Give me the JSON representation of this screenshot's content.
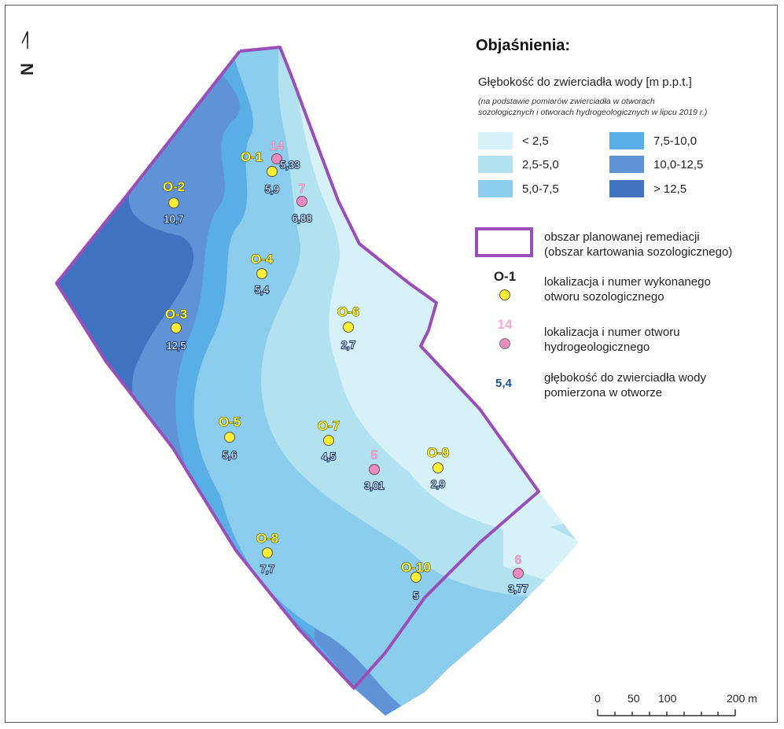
{
  "north_arrow": {
    "letter": "N"
  },
  "legend": {
    "title": "Objaśnienia:",
    "depth_title": "Głębokość do zwierciadła wody [m p.p.t.]",
    "depth_note_line1": "(na podstawie pomiarów zwierciadła w otworach",
    "depth_note_line2": "sozologicznych i otworach hydrogeologicznych w lipcu 2019 r.)",
    "classes": [
      {
        "label": "< 2,5",
        "color": "#d6f1f7"
      },
      {
        "label": "2,5-5,0",
        "color": "#b2e1f0"
      },
      {
        "label": "5,0-7,5",
        "color": "#8ccdee"
      },
      {
        "label": "7,5-10,0",
        "color": "#5aaee6"
      },
      {
        "label": "10,0-12,5",
        "color": "#5f93d6"
      },
      {
        "label": "> 12,5",
        "color": "#3f72c1"
      }
    ],
    "boundary_line1": "obszar planowanej remediacji",
    "boundary_line2": "(obszar kartowania sozologicznego)",
    "boundary_color": "#9a4fb8",
    "soz_symbol_code": "O-1",
    "soz_line1": "lokalizacja i numer wykonanego",
    "soz_line2": "otworu sozologicznego",
    "hydro_symbol_code": "14",
    "hydro_line1": "lokalizacja i numer otworu",
    "hydro_line2": "hydrogeologicznego",
    "depth_symbol_value": "5,4",
    "depth_line1": "głębokość do zwierciadła wody",
    "depth_line2": "pomierzona w otworze",
    "soz_color": "#ffee33",
    "hydro_color": "#e88cc0",
    "hydro_label_color": "#f6a9d2",
    "depth_value_color": "#1f4d9e"
  },
  "boreholes": [
    {
      "id": "O-1",
      "depth": "5,9",
      "type": "sozologiczny"
    },
    {
      "id": "O-2",
      "depth": "10,7",
      "type": "sozologiczny"
    },
    {
      "id": "O-3",
      "depth": "12,5",
      "type": "sozologiczny"
    },
    {
      "id": "O-4",
      "depth": "5,4",
      "type": "sozologiczny"
    },
    {
      "id": "O-5",
      "depth": "5,6",
      "type": "sozologiczny"
    },
    {
      "id": "O-6",
      "depth": "2,7",
      "type": "sozologiczny"
    },
    {
      "id": "O-7",
      "depth": "4,5",
      "type": "sozologiczny"
    },
    {
      "id": "O-8",
      "depth": "7,7",
      "type": "sozologiczny"
    },
    {
      "id": "O-9",
      "depth": "2,9",
      "type": "sozologiczny"
    },
    {
      "id": "O-10",
      "depth": "5",
      "type": "sozologiczny"
    },
    {
      "id": "14",
      "depth": "5,33",
      "type": "hydrogeologiczny"
    },
    {
      "id": "7",
      "depth": "6,88",
      "type": "hydrogeologiczny"
    },
    {
      "id": "5",
      "depth": "3,01",
      "type": "hydrogeologiczny"
    },
    {
      "id": "6",
      "depth": "3,77",
      "type": "hydrogeologiczny"
    }
  ],
  "scale_bar": {
    "ticks": [
      "0",
      "50",
      "100",
      "200 m"
    ]
  }
}
